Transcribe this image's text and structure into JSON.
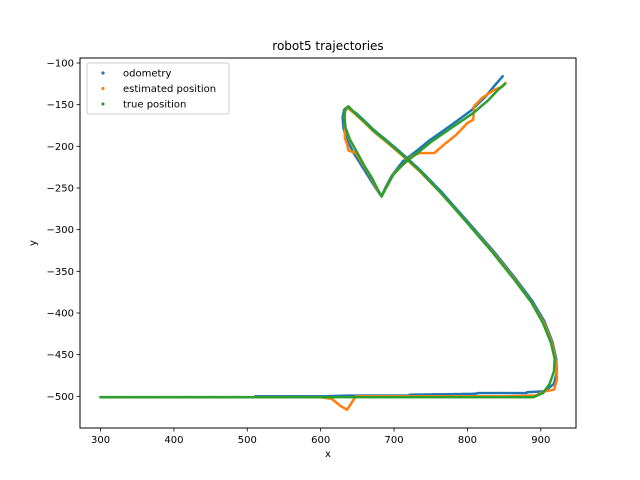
{
  "chart_data": {
    "type": "scatter",
    "title": "robot5 trajectories",
    "xlabel": "x",
    "ylabel": "y",
    "xlim": [
      272,
      948
    ],
    "ylim": [
      -538,
      -94
    ],
    "xticks": [
      300,
      400,
      500,
      600,
      700,
      800,
      900
    ],
    "yticks": [
      -100,
      -150,
      -200,
      -250,
      -300,
      -350,
      -400,
      -450,
      -500
    ],
    "legend_position": "top-left",
    "series": [
      {
        "name": "odometry",
        "color": "#1f77b4",
        "points": [
          [
            300,
            -501
          ],
          [
            400,
            -501
          ],
          [
            510,
            -501
          ],
          [
            511,
            -500
          ],
          [
            600,
            -500
          ],
          [
            640,
            -499
          ],
          [
            720,
            -499
          ],
          [
            722,
            -498
          ],
          [
            810,
            -497
          ],
          [
            815,
            -496
          ],
          [
            880,
            -496
          ],
          [
            882,
            -495
          ],
          [
            905,
            -494
          ],
          [
            918,
            -485
          ],
          [
            922,
            -470
          ],
          [
            921,
            -455
          ],
          [
            916,
            -435
          ],
          [
            905,
            -410
          ],
          [
            888,
            -385
          ],
          [
            865,
            -358
          ],
          [
            835,
            -325
          ],
          [
            800,
            -290
          ],
          [
            765,
            -255
          ],
          [
            735,
            -228
          ],
          [
            710,
            -208
          ],
          [
            690,
            -193
          ],
          [
            672,
            -180
          ],
          [
            658,
            -168
          ],
          [
            648,
            -160
          ],
          [
            640,
            -156
          ],
          [
            636,
            -153
          ],
          [
            632,
            -156
          ],
          [
            630,
            -165
          ],
          [
            631,
            -178
          ],
          [
            636,
            -192
          ],
          [
            645,
            -208
          ],
          [
            655,
            -222
          ],
          [
            665,
            -236
          ],
          [
            675,
            -250
          ],
          [
            683,
            -260
          ],
          [
            688,
            -250
          ],
          [
            697,
            -235
          ],
          [
            712,
            -218
          ],
          [
            730,
            -206
          ],
          [
            748,
            -193
          ],
          [
            766,
            -182
          ],
          [
            785,
            -170
          ],
          [
            805,
            -157
          ],
          [
            825,
            -140
          ],
          [
            840,
            -124
          ],
          [
            848,
            -116
          ]
        ]
      },
      {
        "name": "estimated position",
        "color": "#ff7f0e",
        "points": [
          [
            300,
            -501
          ],
          [
            400,
            -501
          ],
          [
            500,
            -501
          ],
          [
            600,
            -501
          ],
          [
            615,
            -503
          ],
          [
            628,
            -512
          ],
          [
            636,
            -516
          ],
          [
            642,
            -508
          ],
          [
            648,
            -500
          ],
          [
            700,
            -500
          ],
          [
            760,
            -500
          ],
          [
            850,
            -500
          ],
          [
            893,
            -499
          ],
          [
            905,
            -494
          ],
          [
            918,
            -492
          ],
          [
            922,
            -480
          ],
          [
            921,
            -460
          ],
          [
            916,
            -438
          ],
          [
            905,
            -413
          ],
          [
            888,
            -388
          ],
          [
            865,
            -360
          ],
          [
            835,
            -327
          ],
          [
            800,
            -292
          ],
          [
            765,
            -257
          ],
          [
            735,
            -230
          ],
          [
            710,
            -210
          ],
          [
            690,
            -195
          ],
          [
            672,
            -182
          ],
          [
            658,
            -170
          ],
          [
            648,
            -162
          ],
          [
            640,
            -156
          ],
          [
            636,
            -153
          ],
          [
            633,
            -157
          ],
          [
            633,
            -190
          ],
          [
            636,
            -197
          ],
          [
            638,
            -205
          ],
          [
            648,
            -208
          ],
          [
            658,
            -222
          ],
          [
            668,
            -236
          ],
          [
            676,
            -250
          ],
          [
            683,
            -260
          ],
          [
            690,
            -248
          ],
          [
            700,
            -232
          ],
          [
            715,
            -220
          ],
          [
            724,
            -212
          ],
          [
            735,
            -208
          ],
          [
            755,
            -208
          ],
          [
            768,
            -198
          ],
          [
            785,
            -186
          ],
          [
            800,
            -172
          ],
          [
            808,
            -168
          ],
          [
            809,
            -152
          ],
          [
            820,
            -142
          ],
          [
            835,
            -133
          ],
          [
            848,
            -128
          ],
          [
            852,
            -124
          ]
        ]
      },
      {
        "name": "true position",
        "color": "#2ca02c",
        "points": [
          [
            300,
            -501
          ],
          [
            400,
            -501
          ],
          [
            500,
            -501
          ],
          [
            600,
            -501
          ],
          [
            700,
            -501
          ],
          [
            800,
            -501
          ],
          [
            890,
            -501
          ],
          [
            903,
            -496
          ],
          [
            912,
            -485
          ],
          [
            918,
            -470
          ],
          [
            919,
            -455
          ],
          [
            914,
            -436
          ],
          [
            903,
            -412
          ],
          [
            887,
            -387
          ],
          [
            864,
            -360
          ],
          [
            834,
            -327
          ],
          [
            800,
            -292
          ],
          [
            765,
            -257
          ],
          [
            735,
            -229
          ],
          [
            710,
            -209
          ],
          [
            690,
            -194
          ],
          [
            672,
            -181
          ],
          [
            658,
            -169
          ],
          [
            648,
            -161
          ],
          [
            641,
            -155
          ],
          [
            638,
            -152
          ],
          [
            634,
            -156
          ],
          [
            632,
            -163
          ],
          [
            634,
            -178
          ],
          [
            640,
            -192
          ],
          [
            650,
            -208
          ],
          [
            660,
            -224
          ],
          [
            670,
            -238
          ],
          [
            678,
            -252
          ],
          [
            683,
            -260
          ],
          [
            689,
            -250
          ],
          [
            699,
            -234
          ],
          [
            714,
            -220
          ],
          [
            732,
            -208
          ],
          [
            750,
            -195
          ],
          [
            768,
            -184
          ],
          [
            788,
            -172
          ],
          [
            808,
            -160
          ],
          [
            828,
            -145
          ],
          [
            842,
            -132
          ],
          [
            851,
            -125
          ]
        ]
      }
    ]
  }
}
